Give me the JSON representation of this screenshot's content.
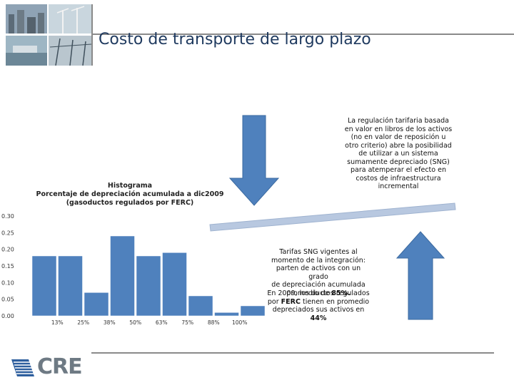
{
  "slide": {
    "title": "Costo de transporte de largo plazo",
    "logo_text": "CRE"
  },
  "histogram_title": {
    "line1": "Histograma",
    "line2": "Porcentaje de depreciación acumulada a dic2009",
    "line3": "(gasoductos regulados por FERC)"
  },
  "notes": {
    "top": [
      "La regulación tarifaria basada",
      "en valor en libros de los activos",
      "(no en valor de reposición u",
      "otro criterio) abre la posibilidad",
      "de utilizar a un sistema",
      "sumamente depreciado (SNG)",
      "para atemperar el efecto en",
      "costos de infraestructura",
      "incremental"
    ],
    "mid_lines": [
      "Tarifas SNG vigentes al",
      "momento de la integración:",
      "parten de activos con un grado",
      "de depreciación acumulada"
    ],
    "mid_last_prefix": "promedio de ",
    "mid_last_bold": "85%.",
    "bottom_line1": "En 2009, los ductos regulados",
    "bottom_line2_prefix": "por ",
    "bottom_line2_bold": "FERC",
    "bottom_line2_suffix": " tienen en promedio",
    "bottom_line3": "depreciados sus activos en",
    "bottom_line4_bold": "44%"
  },
  "colors": {
    "bar": "#4f81bd",
    "arrow": "#4f81bd",
    "trend_line": "#b8c8e0",
    "title": "#1f3a5f"
  },
  "chart_data": {
    "type": "bar",
    "categories": [
      "13%",
      "25%",
      "38%",
      "50%",
      "63%",
      "75%",
      "88%",
      "100%"
    ],
    "values": [
      0.18,
      0.07,
      0.24,
      0.18,
      0.19,
      0.06,
      0.01,
      0.03
    ],
    "leading_value": 0.18,
    "yticks": [
      "0.30",
      "0.25",
      "0.20",
      "0.15",
      "0.10",
      "0.05",
      "0.00"
    ],
    "ylim": [
      0,
      0.3
    ],
    "title": "Histograma\nPorcentaje de depreciación acumulada a dic2009\n(gasoductos regulados por FERC)",
    "xlabel": "",
    "ylabel": "",
    "grid": false
  }
}
